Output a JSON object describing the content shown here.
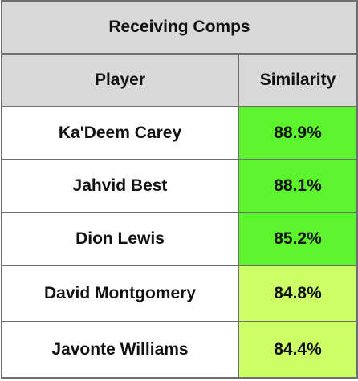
{
  "table": {
    "title": "Receiving Comps",
    "columns": [
      "Player",
      "Similarity"
    ],
    "rows": [
      {
        "player": "Ka'Deem Carey",
        "similarity": "88.9%",
        "color": "#5cf42c"
      },
      {
        "player": "Jahvid Best",
        "similarity": "88.1%",
        "color": "#5cf42c"
      },
      {
        "player": "Dion Lewis",
        "similarity": "85.2%",
        "color": "#5cf42c"
      },
      {
        "player": "David Montgomery",
        "similarity": "84.8%",
        "color": "#cdff66"
      },
      {
        "player": "Javonte Williams",
        "similarity": "84.4%",
        "color": "#cdff66"
      }
    ],
    "header_bg": "#d9d9d9",
    "border_color": "#6e6e6e"
  }
}
